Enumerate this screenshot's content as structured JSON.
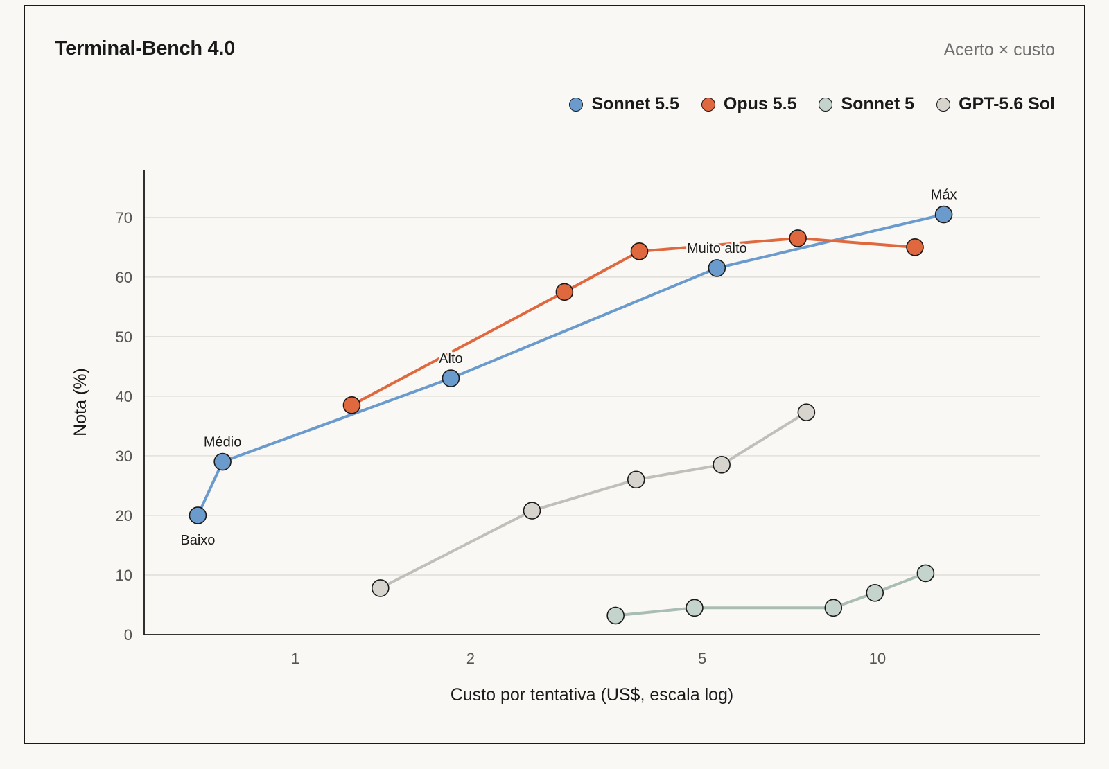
{
  "header": {
    "title": "Terminal-Bench 4.0",
    "subtitle": "Acerto × custo"
  },
  "chart_data": {
    "type": "line",
    "title": "Terminal-Bench 4.0",
    "subtitle": "Acerto × custo",
    "xlabel": "Custo por tentativa (US$, escala log)",
    "ylabel": "Nota (%)",
    "xscale": "log",
    "xlim": [
      0.55,
      19
    ],
    "ylim": [
      0,
      78
    ],
    "xticks": [
      1,
      2,
      5,
      10
    ],
    "xtick_labels": [
      "1",
      "2",
      "5",
      "10"
    ],
    "yticks": [
      0,
      10,
      20,
      30,
      40,
      50,
      60,
      70
    ],
    "grid": "horizontal",
    "legend_position": "top-right",
    "series": [
      {
        "name": "Sonnet 5.5",
        "color": "#6a9bcc",
        "x": [
          0.68,
          0.75,
          1.85,
          5.3,
          13.0
        ],
        "y": [
          20,
          29,
          43,
          61.5,
          70.5
        ],
        "point_labels": [
          "Baixo",
          "Médio",
          "Alto",
          "Muito alto",
          "Máx"
        ]
      },
      {
        "name": "Opus 5.5",
        "color": "#e0683f",
        "x": [
          1.25,
          2.9,
          3.9,
          7.3,
          11.6
        ],
        "y": [
          38.5,
          57.5,
          64.3,
          66.5,
          65.0
        ],
        "point_labels": [
          "",
          "",
          "",
          "",
          ""
        ]
      },
      {
        "name": "Sonnet 5",
        "color": "#c5d3cd",
        "line_color": "#a9bdb5",
        "x": [
          3.55,
          4.85,
          8.4,
          9.9,
          12.1
        ],
        "y": [
          3.2,
          4.5,
          4.5,
          7.0,
          10.3
        ],
        "point_labels": [
          "",
          "",
          "",
          "",
          ""
        ]
      },
      {
        "name": "GPT-5.6 Sol",
        "color": "#d6d4cc",
        "line_color": "#c0bfb9",
        "x": [
          1.4,
          2.55,
          3.85,
          5.4,
          7.55
        ],
        "y": [
          7.8,
          20.8,
          26.0,
          28.5,
          37.3
        ],
        "point_labels": [
          "",
          "",
          "",
          "",
          ""
        ]
      }
    ]
  }
}
